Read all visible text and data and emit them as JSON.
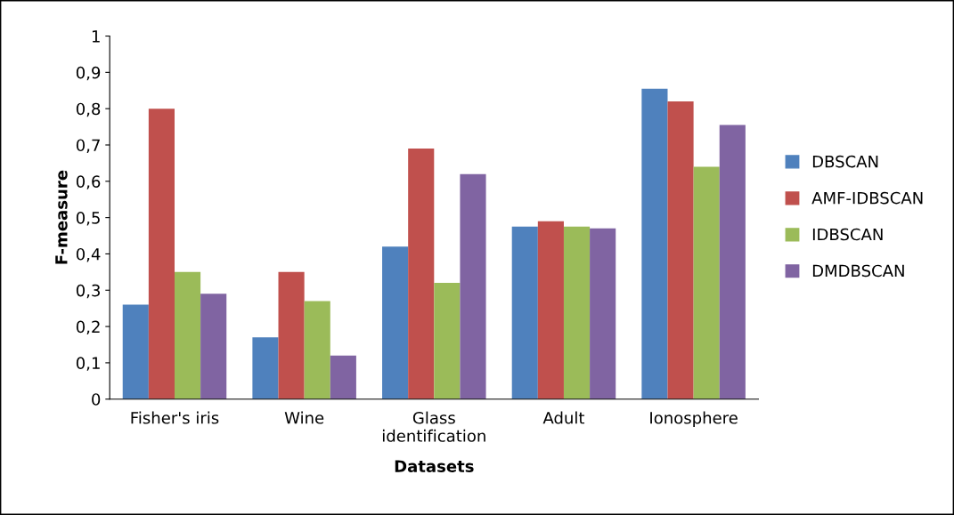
{
  "chart_data": {
    "type": "bar",
    "xlabel": "Datasets",
    "ylabel": "F-measure",
    "categories": [
      "Fisher's iris",
      "Wine",
      "Glass\nidentification",
      "Adult",
      "Ionosphere"
    ],
    "series": [
      {
        "name": "DBSCAN",
        "color": "#4f81bd",
        "values": [
          0.26,
          0.17,
          0.42,
          0.475,
          0.855
        ]
      },
      {
        "name": "AMF-IDBSCAN",
        "color": "#c0504d",
        "values": [
          0.8,
          0.35,
          0.69,
          0.49,
          0.82
        ]
      },
      {
        "name": "IDBSCAN",
        "color": "#9bbb59",
        "values": [
          0.35,
          0.27,
          0.32,
          0.475,
          0.64
        ]
      },
      {
        "name": "DMDBSCAN",
        "color": "#8064a2",
        "values": [
          0.29,
          0.12,
          0.62,
          0.47,
          0.755
        ]
      }
    ],
    "ylim": [
      0,
      1
    ],
    "yticks": [
      0,
      {
        "value": 0.1,
        "label": "0,1"
      },
      {
        "value": 0.2,
        "label": "0,2"
      },
      {
        "value": 0.3,
        "label": "0,3"
      },
      {
        "value": 0.4,
        "label": "0,4"
      },
      {
        "value": 0.5,
        "label": "0,5"
      },
      {
        "value": 0.6,
        "label": "0,6"
      },
      {
        "value": 0.7,
        "label": "0,7"
      },
      {
        "value": 0.8,
        "label": "0,8"
      },
      {
        "value": 0.9,
        "label": "0,9"
      },
      1
    ],
    "grid": false,
    "legend": "right"
  }
}
